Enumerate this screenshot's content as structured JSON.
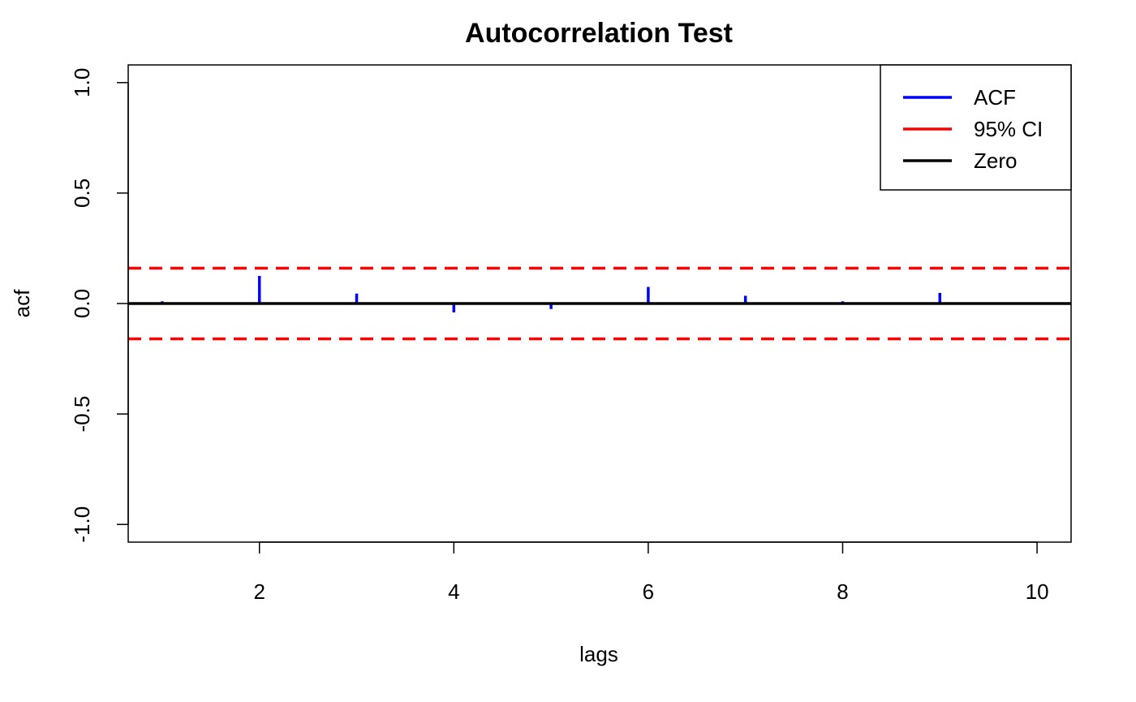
{
  "chart_data": {
    "type": "bar",
    "title": "Autocorrelation Test",
    "xlabel": "lags",
    "ylabel": "acf",
    "xlim": [
      0.65,
      10.35
    ],
    "ylim": [
      -1.08,
      1.08
    ],
    "x_ticks": [
      2,
      4,
      6,
      8,
      10
    ],
    "y_ticks": [
      -1.0,
      -0.5,
      0.0,
      0.5,
      1.0
    ],
    "x_tick_labels": [
      "2",
      "4",
      "6",
      "8",
      "10"
    ],
    "y_tick_labels": [
      "-1.0",
      "-0.5",
      "0.0",
      "0.5",
      "1.0"
    ],
    "lags": [
      1,
      2,
      3,
      4,
      5,
      6,
      7,
      8,
      9,
      10
    ],
    "acf": [
      0.01,
      0.125,
      0.045,
      -0.04,
      -0.025,
      0.075,
      0.035,
      0.01,
      0.048,
      0.0
    ],
    "ci": 0.16,
    "zero": 0,
    "legend": {
      "position": "top-right",
      "entries": [
        {
          "label": "ACF",
          "color": "#0000ff"
        },
        {
          "label": "95% CI",
          "color": "#ff0000"
        },
        {
          "label": "Zero",
          "color": "#000000"
        }
      ]
    },
    "colors": {
      "acf": "#0000ff",
      "ci": "#ff0000",
      "zero": "#000000"
    },
    "grid": false
  }
}
